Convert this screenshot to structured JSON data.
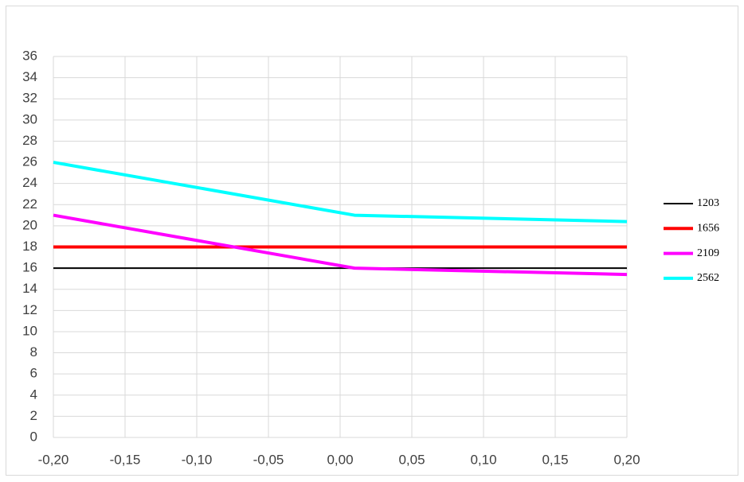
{
  "chart_data": {
    "type": "line",
    "x": [
      -0.2,
      0.01,
      0.2
    ],
    "series": [
      {
        "name": "1203",
        "color": "#000000",
        "width": 2,
        "values": [
          16,
          16,
          16
        ]
      },
      {
        "name": "1656",
        "color": "#ff0000",
        "width": 4,
        "values": [
          18,
          18,
          18
        ]
      },
      {
        "name": "2109",
        "color": "#ff00ff",
        "width": 4,
        "values": [
          21,
          16,
          15.4
        ]
      },
      {
        "name": "2562",
        "color": "#00ffff",
        "width": 4,
        "values": [
          26,
          21,
          20.4
        ]
      }
    ],
    "xlim": [
      -0.2,
      0.2
    ],
    "xticks": [
      {
        "value": -0.2,
        "label": "-0,20"
      },
      {
        "value": -0.15,
        "label": "-0,15"
      },
      {
        "value": -0.1,
        "label": "-0,10"
      },
      {
        "value": -0.05,
        "label": "-0,05"
      },
      {
        "value": 0,
        "label": "0,00"
      },
      {
        "value": 0.05,
        "label": "0,05"
      },
      {
        "value": 0.1,
        "label": "0,10"
      },
      {
        "value": 0.15,
        "label": "0,15"
      },
      {
        "value": 0.2,
        "label": "0,20"
      }
    ],
    "ylim": [
      0,
      36
    ],
    "yticks": [
      0,
      2,
      4,
      6,
      8,
      10,
      12,
      14,
      16,
      18,
      20,
      22,
      24,
      26,
      28,
      30,
      32,
      34,
      36
    ],
    "grid": true,
    "legend": "right"
  }
}
